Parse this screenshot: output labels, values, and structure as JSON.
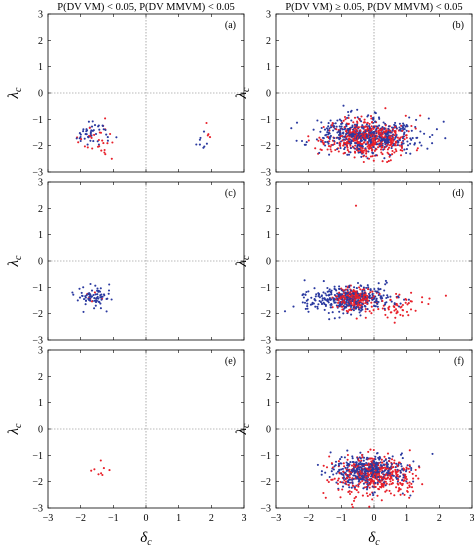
{
  "column_titles": [
    "P(DV VM) < 0.05, P(DV MMVM) < 0.05",
    "P(DV VM) ≥ 0.05, P(DV MMVM) < 0.05"
  ],
  "chart_data": {
    "type": "scatter",
    "layout": "3x2 grid of scatter panels",
    "xlabel": "δc",
    "ylabel": "λc",
    "xlim": [
      -3,
      3
    ],
    "ylim": [
      -3,
      3
    ],
    "x_ticks": [
      "−3",
      "−2",
      "−1",
      "0",
      "1",
      "2",
      "3"
    ],
    "y_ticks": [
      "3",
      "2",
      "1",
      "0",
      "−1",
      "−2",
      "−3"
    ],
    "reference_lines": "dotted lines at x = 0 and y = 0",
    "colors": {
      "blue": "#2b3aa0",
      "red": "#e8202a"
    },
    "panels": [
      {
        "label": "(a)",
        "column": 0,
        "row": 0,
        "clusters": [
          {
            "color": "blue",
            "cx": -1.6,
            "cy": -1.5,
            "sx": 0.25,
            "sy": 0.25,
            "n": 45
          },
          {
            "color": "red",
            "cx": -1.5,
            "cy": -1.8,
            "sx": 0.28,
            "sy": 0.35,
            "n": 30
          },
          {
            "color": "blue",
            "cx": 1.7,
            "cy": -1.9,
            "sx": 0.18,
            "sy": 0.15,
            "n": 8
          },
          {
            "color": "red",
            "cx": 1.8,
            "cy": -1.5,
            "sx": 0.1,
            "sy": 0.15,
            "n": 4
          }
        ]
      },
      {
        "label": "(b)",
        "column": 1,
        "row": 0,
        "clusters": [
          {
            "color": "blue",
            "cx": -0.2,
            "cy": -1.6,
            "sx": 0.75,
            "sy": 0.32,
            "n": 520
          },
          {
            "color": "red",
            "cx": -0.2,
            "cy": -1.7,
            "sx": 0.65,
            "sy": 0.35,
            "n": 480
          }
        ]
      },
      {
        "label": "(c)",
        "column": 0,
        "row": 1,
        "clusters": [
          {
            "color": "blue",
            "cx": -1.6,
            "cy": -1.4,
            "sx": 0.28,
            "sy": 0.2,
            "n": 75
          },
          {
            "color": "red",
            "cx": -1.6,
            "cy": -1.35,
            "sx": 0.2,
            "sy": 0.15,
            "n": 6
          }
        ]
      },
      {
        "label": "(d)",
        "column": 1,
        "row": 1,
        "clusters": [
          {
            "color": "blue",
            "cx": -0.8,
            "cy": -1.45,
            "sx": 0.65,
            "sy": 0.25,
            "n": 380
          },
          {
            "color": "red",
            "cx": -0.6,
            "cy": -1.4,
            "sx": 0.3,
            "sy": 0.2,
            "n": 220
          },
          {
            "color": "red",
            "cx": 0.6,
            "cy": -1.7,
            "sx": 0.55,
            "sy": 0.3,
            "n": 70
          },
          {
            "color": "red",
            "cx": -0.55,
            "cy": 2.1,
            "sx": 0,
            "sy": 0,
            "n": 1
          }
        ]
      },
      {
        "label": "(e)",
        "column": 0,
        "row": 2,
        "clusters": [
          {
            "color": "red",
            "cx": -1.4,
            "cy": -1.5,
            "sx": 0.12,
            "sy": 0.18,
            "n": 8
          }
        ]
      },
      {
        "label": "(f)",
        "column": 1,
        "row": 2,
        "clusters": [
          {
            "color": "blue",
            "cx": -0.2,
            "cy": -1.6,
            "sx": 0.55,
            "sy": 0.3,
            "n": 420
          },
          {
            "color": "red",
            "cx": 0.0,
            "cy": -1.8,
            "sx": 0.6,
            "sy": 0.35,
            "n": 420
          }
        ]
      }
    ]
  }
}
